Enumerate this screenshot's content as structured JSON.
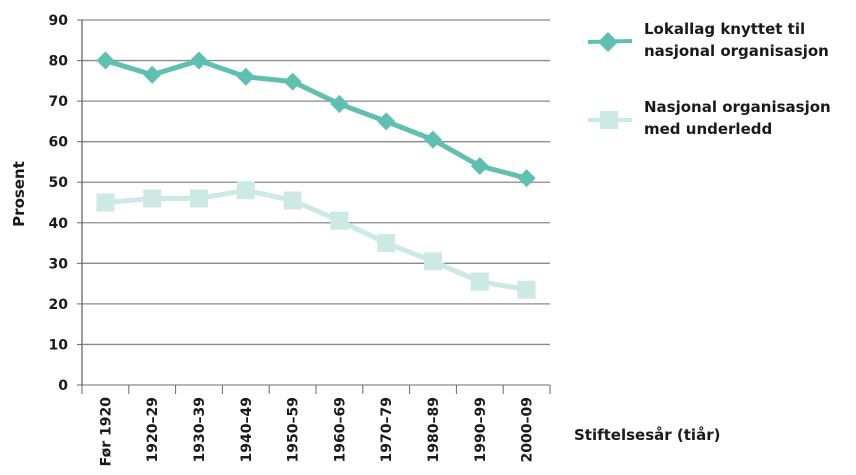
{
  "chart_data": {
    "type": "line",
    "categories": [
      "Før 1920",
      "1920–29",
      "1930–39",
      "1940–49",
      "1950–59",
      "1960–69",
      "1970–79",
      "1980–89",
      "1990–99",
      "2000–09"
    ],
    "series": [
      {
        "name": "Lokallag knyttet til nasjonal organisasjon",
        "name_lines": [
          "Lokallag knyttet til",
          "nasjonal organisasjon"
        ],
        "marker": "diamond",
        "color": "#5fbfb0",
        "values": [
          80,
          76.5,
          80,
          76,
          74.8,
          69.3,
          65,
          60.5,
          54,
          51
        ]
      },
      {
        "name": "Nasjonal organisasjon med underledd",
        "name_lines": [
          "Nasjonal organisasjon",
          "med underledd"
        ],
        "marker": "square",
        "color": "#cde9e3",
        "values": [
          45,
          46,
          46,
          48,
          45.5,
          40.5,
          35,
          30.5,
          25.5,
          23.5
        ]
      }
    ],
    "xlabel": "Stiftelsesår (tiår)",
    "ylabel": "Prosent",
    "ylim": [
      0,
      90
    ],
    "yticks": [
      "0",
      "10",
      "20",
      "30",
      "40",
      "50",
      "60",
      "70",
      "80",
      "90"
    ],
    "grid": true,
    "legend_position": "right"
  }
}
